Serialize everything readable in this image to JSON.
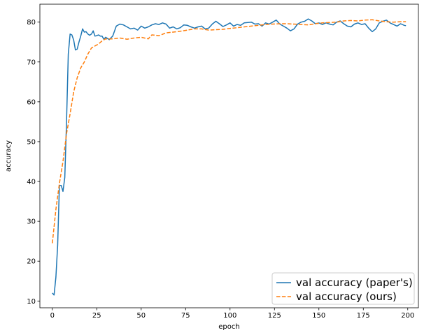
{
  "chart_data": {
    "type": "line",
    "title": "",
    "xlabel": "epoch",
    "ylabel": "accuracy",
    "xlim": [
      -7,
      206
    ],
    "ylim": [
      8.3,
      84.5
    ],
    "xticks": [
      0,
      25,
      50,
      75,
      100,
      125,
      150,
      175,
      200
    ],
    "yticks": [
      10,
      20,
      30,
      40,
      50,
      60,
      70,
      80
    ],
    "grid": false,
    "legend_position": "lower-right",
    "series": [
      {
        "name": "val accuracy (paper's)",
        "color": "#1f77b4",
        "linestyle": "solid",
        "x": [
          0,
          1,
          2,
          3,
          4,
          5,
          6,
          7,
          8,
          9,
          10,
          11,
          12,
          13,
          14,
          15,
          16,
          17,
          18,
          19,
          20,
          21,
          22,
          23,
          24,
          25,
          26,
          27,
          28,
          29,
          30,
          32,
          34,
          36,
          38,
          40,
          42,
          44,
          46,
          48,
          50,
          52,
          54,
          56,
          58,
          60,
          62,
          64,
          66,
          68,
          70,
          72,
          74,
          76,
          78,
          80,
          82,
          84,
          86,
          88,
          90,
          92,
          94,
          96,
          98,
          100,
          102,
          104,
          106,
          108,
          110,
          112,
          114,
          116,
          118,
          120,
          122,
          124,
          126,
          128,
          130,
          132,
          134,
          136,
          138,
          140,
          142,
          144,
          146,
          148,
          150,
          152,
          154,
          156,
          158,
          160,
          162,
          164,
          166,
          168,
          170,
          172,
          174,
          176,
          178,
          180,
          182,
          184,
          186,
          188,
          190,
          192,
          194,
          196,
          198,
          199
        ],
        "values": [
          12.0,
          11.5,
          16.0,
          24.0,
          39.0,
          39.0,
          37.5,
          41.0,
          55.0,
          72.0,
          77.0,
          76.8,
          75.5,
          73.0,
          73.2,
          75.0,
          76.5,
          78.3,
          77.5,
          77.6,
          77.0,
          76.7,
          77.0,
          77.8,
          76.5,
          76.6,
          76.8,
          76.5,
          76.5,
          75.7,
          76.2,
          75.6,
          76.5,
          79.0,
          79.5,
          79.3,
          78.8,
          78.3,
          78.5,
          78.0,
          79.0,
          78.5,
          78.8,
          79.3,
          79.6,
          79.4,
          79.8,
          79.5,
          78.5,
          78.8,
          78.3,
          78.6,
          79.3,
          79.2,
          78.8,
          78.5,
          78.8,
          79.0,
          78.3,
          78.5,
          79.5,
          80.2,
          79.6,
          78.9,
          79.3,
          79.8,
          79.0,
          79.4,
          79.2,
          79.8,
          79.9,
          80.0,
          79.5,
          79.6,
          79.0,
          79.8,
          79.5,
          80.0,
          80.5,
          79.5,
          79.0,
          78.5,
          77.8,
          78.3,
          79.5,
          80.0,
          80.2,
          80.8,
          80.3,
          79.6,
          79.8,
          79.4,
          79.8,
          79.5,
          79.3,
          80.0,
          80.3,
          79.6,
          79.0,
          78.8,
          79.5,
          79.8,
          79.4,
          79.6,
          78.5,
          77.6,
          78.3,
          79.8,
          80.2,
          80.5,
          79.8,
          79.4,
          79.0,
          79.6,
          79.2,
          79.1
        ]
      },
      {
        "name": "val accuracy (ours)",
        "color": "#ff7f0e",
        "linestyle": "dashed",
        "x": [
          0,
          2,
          4,
          6,
          8,
          10,
          12,
          14,
          16,
          18,
          20,
          22,
          24,
          26,
          28,
          30,
          34,
          38,
          42,
          46,
          50,
          54,
          56,
          60,
          64,
          68,
          72,
          76,
          80,
          84,
          88,
          92,
          96,
          100,
          104,
          108,
          112,
          116,
          120,
          124,
          128,
          132,
          136,
          140,
          144,
          148,
          152,
          156,
          160,
          164,
          168,
          172,
          176,
          180,
          184,
          188,
          192,
          196,
          199
        ],
        "values": [
          24.5,
          33.0,
          39.5,
          45.0,
          52.0,
          57.0,
          62.5,
          66.0,
          68.5,
          70.0,
          72.0,
          73.5,
          74.0,
          74.5,
          75.3,
          75.8,
          75.8,
          76.0,
          75.7,
          76.0,
          76.2,
          75.8,
          76.8,
          76.6,
          77.3,
          77.5,
          77.7,
          78.0,
          78.3,
          78.3,
          78.0,
          78.1,
          78.2,
          78.4,
          78.6,
          78.8,
          79.0,
          79.2,
          79.4,
          79.5,
          79.6,
          79.6,
          79.5,
          79.4,
          79.3,
          79.6,
          79.8,
          79.9,
          80.0,
          80.3,
          80.4,
          80.3,
          80.5,
          80.6,
          80.3,
          80.1,
          80.0,
          80.1,
          80.1
        ]
      }
    ]
  }
}
